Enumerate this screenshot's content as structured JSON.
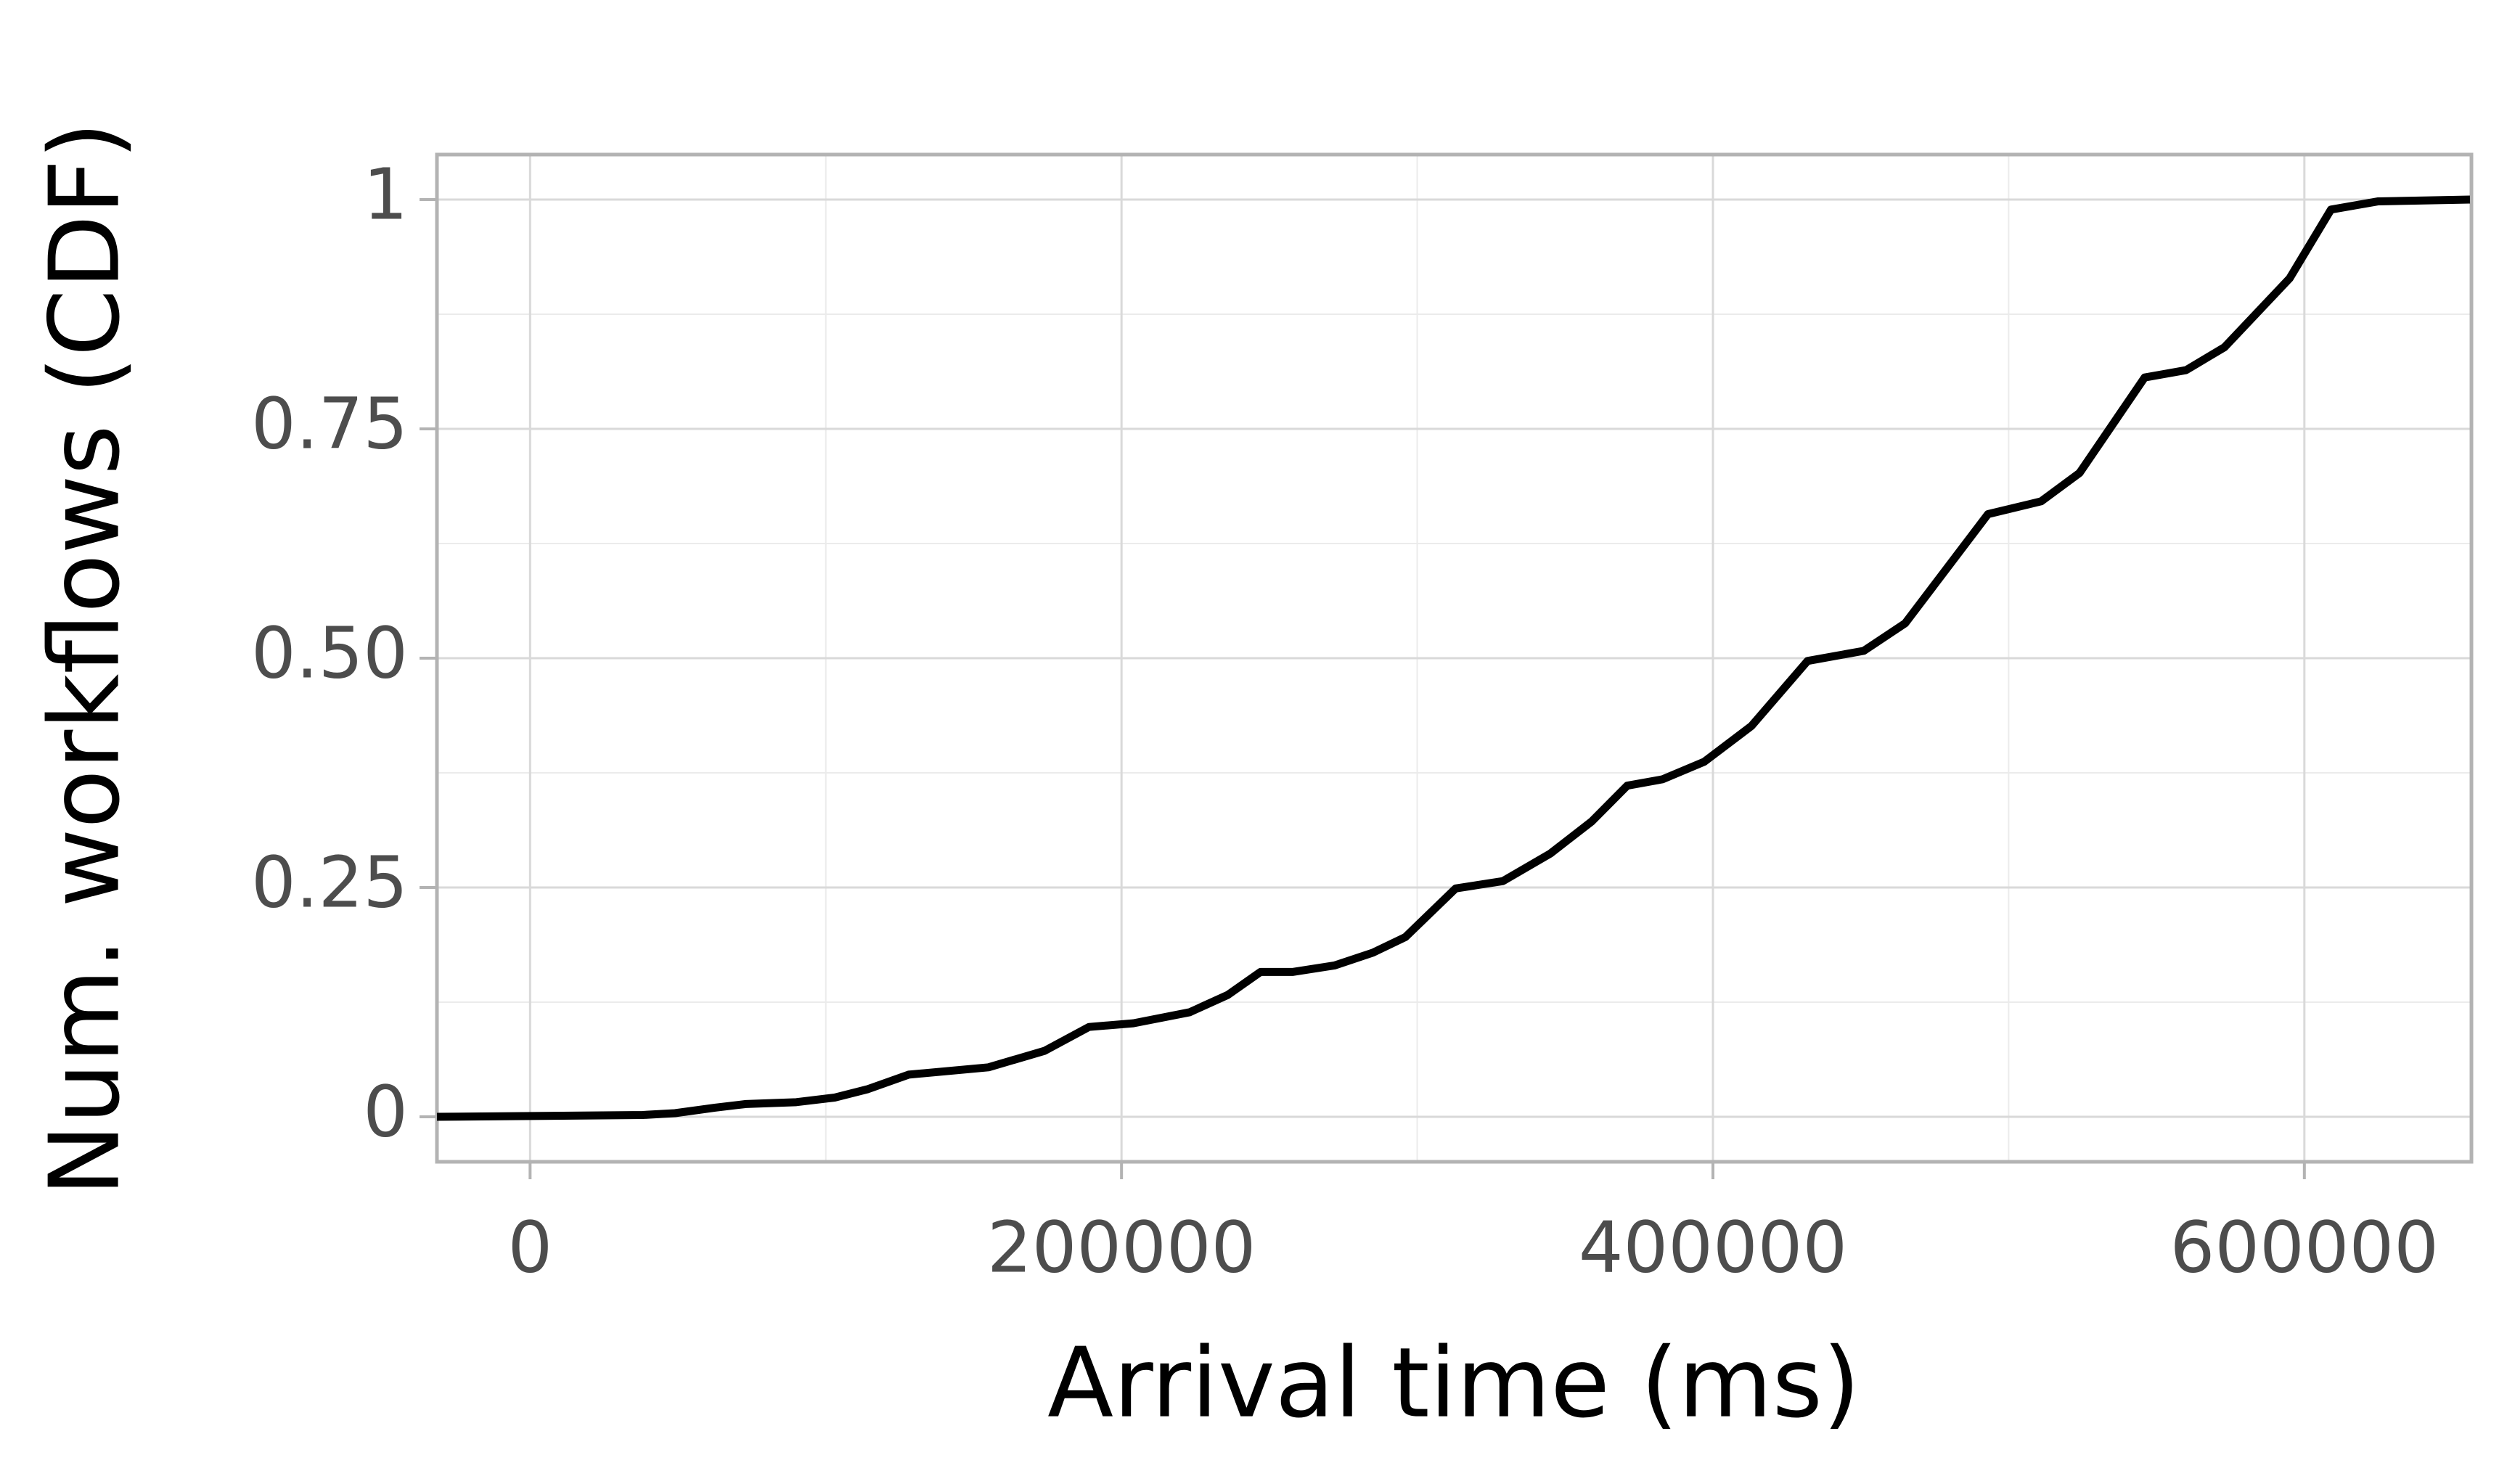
{
  "chart_data": {
    "type": "line",
    "xlabel": "Arrival time (ms)",
    "ylabel": "Num. workflows (CDF)",
    "xlim": [
      -31500,
      656500
    ],
    "ylim": [
      -0.049,
      1.049
    ],
    "xticks": [
      0,
      200000,
      400000,
      600000
    ],
    "yticks": [
      0,
      0.25,
      {
        "value": 0.5,
        "label": "0.50"
      },
      0.75,
      1
    ],
    "xminor": [
      100000,
      300000,
      500000
    ],
    "yminor": [
      0.125,
      0.375,
      0.625,
      0.875
    ],
    "grid": true,
    "series": [
      {
        "color": "#000000",
        "x": [
          -31500,
          38000,
          49000,
          62500,
          73000,
          90000,
          103000,
          114000,
          128000,
          155000,
          174000,
          189000,
          204000,
          223000,
          236000,
          247000,
          258000,
          272000,
          285000,
          296000,
          313000,
          329000,
          345000,
          359000,
          371000,
          383000,
          397000,
          413000,
          432000,
          451000,
          465000,
          493000,
          511000,
          524000,
          546000,
          560000,
          573000,
          595000,
          609000,
          625000,
          656000
        ],
        "values": [
          0,
          0.002,
          0.004,
          0.01,
          0.014,
          0.016,
          0.021,
          0.03,
          0.046,
          0.054,
          0.072,
          0.098,
          0.102,
          0.114,
          0.133,
          0.158,
          0.158,
          0.165,
          0.179,
          0.196,
          0.249,
          0.257,
          0.287,
          0.322,
          0.361,
          0.368,
          0.387,
          0.426,
          0.497,
          0.508,
          0.538,
          0.657,
          0.671,
          0.702,
          0.806,
          0.814,
          0.839,
          0.914,
          0.989,
          0.998,
          1
        ]
      }
    ]
  }
}
